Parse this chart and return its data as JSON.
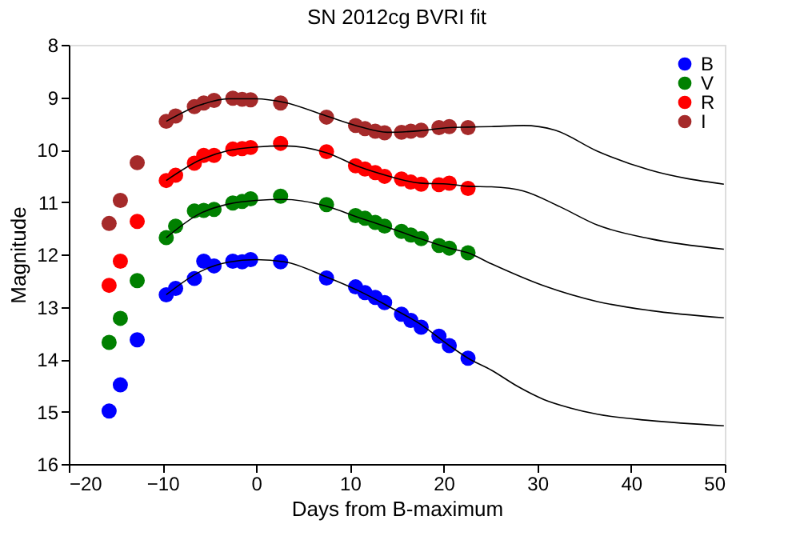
{
  "chart_data": {
    "type": "scatter",
    "title": "SN 2012cg BVRI fit",
    "xlabel": "Days from B-maximum",
    "ylabel": "Magnitude",
    "xlim": [
      -20,
      50
    ],
    "xticks": [
      -20,
      -10,
      0,
      10,
      20,
      30,
      40,
      50
    ],
    "ylim": [
      16,
      8
    ],
    "yticks": [
      8,
      9,
      10,
      11,
      12,
      13,
      14,
      15,
      16
    ],
    "grid": false,
    "legend": "top right",
    "marker": "circle",
    "series": [
      {
        "name": "B",
        "color": "#0000ff",
        "x": [
          -15.7,
          -14.5,
          -12.7,
          -9.6,
          -8.6,
          -6.6,
          -5.6,
          -4.5,
          -2.5,
          -1.5,
          -0.6,
          2.6,
          7.5,
          10.6,
          11.6,
          12.7,
          13.7,
          15.5,
          16.5,
          17.6,
          19.5,
          20.6,
          22.6
        ],
        "values": [
          14.99,
          14.49,
          13.63,
          12.77,
          12.65,
          12.46,
          12.13,
          12.22,
          12.13,
          12.14,
          12.1,
          12.14,
          12.45,
          12.62,
          12.73,
          12.82,
          12.92,
          13.14,
          13.26,
          13.39,
          13.56,
          13.74,
          13.98
        ]
      },
      {
        "name": "V",
        "color": "#008000",
        "x": [
          -15.7,
          -14.5,
          -12.7,
          -9.6,
          -8.6,
          -6.6,
          -5.6,
          -4.5,
          -2.5,
          -1.5,
          -0.6,
          2.6,
          7.5,
          10.6,
          11.6,
          12.7,
          13.7,
          15.5,
          16.5,
          17.6,
          19.5,
          20.6,
          22.6
        ],
        "values": [
          13.68,
          13.22,
          12.5,
          11.68,
          11.46,
          11.17,
          11.16,
          11.14,
          11.02,
          10.99,
          10.94,
          10.89,
          11.05,
          11.26,
          11.31,
          11.39,
          11.46,
          11.56,
          11.63,
          11.7,
          11.83,
          11.88,
          11.97
        ]
      },
      {
        "name": "R",
        "color": "#ff0000",
        "x": [
          -15.7,
          -14.5,
          -12.7,
          -9.6,
          -8.6,
          -6.6,
          -5.6,
          -4.5,
          -2.5,
          -1.5,
          -0.6,
          2.6,
          7.5,
          10.6,
          11.6,
          12.7,
          13.7,
          15.5,
          16.5,
          17.6,
          19.5,
          20.6,
          22.6
        ],
        "values": [
          12.59,
          12.13,
          11.37,
          10.59,
          10.49,
          10.26,
          10.11,
          10.11,
          9.99,
          9.98,
          9.96,
          9.88,
          10.04,
          10.31,
          10.37,
          10.44,
          10.51,
          10.56,
          10.62,
          10.66,
          10.67,
          10.64,
          10.74
        ]
      },
      {
        "name": "I",
        "color": "#a52a2a",
        "x": [
          -15.7,
          -14.5,
          -12.7,
          -9.6,
          -8.6,
          -6.6,
          -5.6,
          -4.5,
          -2.5,
          -1.5,
          -0.6,
          2.6,
          7.5,
          10.6,
          11.6,
          12.7,
          13.7,
          15.5,
          16.5,
          17.6,
          19.5,
          20.6,
          22.6
        ],
        "values": [
          11.41,
          10.97,
          10.25,
          9.46,
          9.36,
          9.18,
          9.11,
          9.06,
          9.02,
          9.04,
          9.05,
          9.11,
          9.38,
          9.54,
          9.6,
          9.65,
          9.68,
          9.67,
          9.65,
          9.63,
          9.58,
          9.56,
          9.58
        ]
      },
      {
        "type": "line",
        "color": "#000000",
        "marker": "none",
        "x": [
          -9.6,
          -6,
          -3,
          0,
          3,
          7.5,
          11,
          14,
          17.5,
          20.6,
          22.6,
          25.1,
          27.9,
          30.7,
          33.5,
          36.4,
          42,
          49.9
        ],
        "values": [
          12.77,
          12.33,
          12.15,
          12.1,
          12.14,
          12.43,
          12.7,
          12.98,
          13.33,
          13.74,
          13.98,
          14.21,
          14.52,
          14.77,
          14.93,
          15.05,
          15.17,
          15.27
        ]
      },
      {
        "type": "line",
        "color": "#000000",
        "marker": "none",
        "x": [
          -9.6,
          -6,
          -3,
          0,
          3,
          7.5,
          11,
          14,
          17.5,
          20.6,
          22.6,
          25.1,
          30.7,
          36.4,
          42,
          49.9
        ],
        "values": [
          11.68,
          11.22,
          11.04,
          10.97,
          10.95,
          11.08,
          11.3,
          11.48,
          11.7,
          11.88,
          11.97,
          12.18,
          12.6,
          12.9,
          13.07,
          13.21
        ]
      },
      {
        "type": "line",
        "color": "#000000",
        "marker": "none",
        "x": [
          -9.6,
          -6,
          -3,
          0,
          3,
          7.5,
          11,
          14,
          17.5,
          20.6,
          22.6,
          25.1,
          28.5,
          32.4,
          36.4,
          42,
          49.9
        ],
        "values": [
          10.59,
          10.2,
          10.02,
          9.95,
          9.93,
          10.06,
          10.33,
          10.5,
          10.64,
          10.66,
          10.7,
          10.71,
          10.79,
          11.09,
          11.44,
          11.7,
          11.9
        ]
      },
      {
        "type": "line",
        "color": "#000000",
        "marker": "none",
        "x": [
          -9.6,
          -6,
          -3,
          0,
          3,
          7.5,
          11,
          14,
          17.5,
          20.6,
          22.6,
          25.1,
          28.5,
          31.9,
          36.4,
          42,
          49.9
        ],
        "values": [
          9.46,
          9.15,
          9.03,
          9.03,
          9.1,
          9.36,
          9.56,
          9.67,
          9.64,
          9.58,
          9.57,
          9.56,
          9.54,
          9.63,
          10.03,
          10.39,
          10.66
        ]
      }
    ]
  }
}
